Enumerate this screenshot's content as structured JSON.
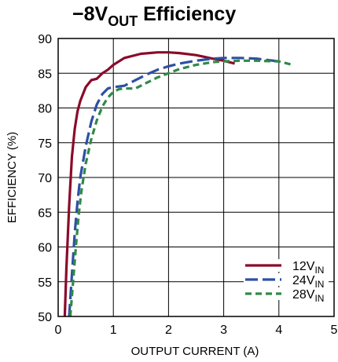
{
  "chart_data": {
    "type": "line",
    "title": {
      "pre": "−8V",
      "sub": "OUT",
      "post": " Efficiency"
    },
    "xlabel": "OUTPUT CURRENT (A)",
    "ylabel": "EFFICIENCY (%)",
    "xlim": [
      0,
      5
    ],
    "ylim": [
      50,
      90
    ],
    "xticks": [
      "0",
      "1",
      "2",
      "3",
      "4",
      "5"
    ],
    "yticks": [
      "50",
      "55",
      "60",
      "65",
      "70",
      "75",
      "80",
      "85",
      "90"
    ],
    "grid": true,
    "legend_position": "bottom-right",
    "series": [
      {
        "name": "12V",
        "name_sub": "IN",
        "color": "#8b0a2a",
        "dash": "solid",
        "x": [
          0.12,
          0.15,
          0.2,
          0.25,
          0.3,
          0.35,
          0.4,
          0.5,
          0.6,
          0.7,
          0.8,
          0.9,
          1.0,
          1.2,
          1.5,
          1.8,
          2.0,
          2.2,
          2.5,
          2.8,
          3.0,
          3.2
        ],
        "y": [
          50,
          57,
          66,
          73,
          77,
          79.5,
          81,
          83,
          84,
          84.2,
          85,
          85.5,
          86.2,
          87.2,
          87.8,
          88,
          88,
          87.9,
          87.6,
          87.1,
          86.8,
          86.4
        ]
      },
      {
        "name": "24V",
        "name_sub": "IN",
        "color": "#2e4fa3",
        "dash": "long",
        "x": [
          0.2,
          0.25,
          0.3,
          0.35,
          0.4,
          0.5,
          0.6,
          0.7,
          0.8,
          0.9,
          1.0,
          1.1,
          1.2,
          1.4,
          1.6,
          1.8,
          2.0,
          2.2,
          2.5,
          2.8,
          3.0,
          3.3,
          3.6,
          4.0
        ],
        "y": [
          50,
          56,
          62,
          66.5,
          70,
          74.5,
          78,
          80.5,
          82,
          82.8,
          83,
          83.1,
          83.2,
          84,
          84.8,
          85.5,
          86,
          86.4,
          86.8,
          87.1,
          87.2,
          87.2,
          87.1,
          86.7
        ]
      },
      {
        "name": "28V",
        "name_sub": "IN",
        "color": "#2f8a47",
        "dash": "short",
        "x": [
          0.22,
          0.27,
          0.32,
          0.37,
          0.42,
          0.5,
          0.6,
          0.7,
          0.8,
          0.9,
          1.0,
          1.1,
          1.2,
          1.4,
          1.6,
          1.8,
          2.0,
          2.2,
          2.5,
          2.8,
          3.0,
          3.3,
          3.6,
          4.0,
          4.25
        ],
        "y": [
          50,
          55,
          60,
          64.5,
          68,
          72,
          75.5,
          78.2,
          80.2,
          81.5,
          82.3,
          82.7,
          82.8,
          82.8,
          83.6,
          84.4,
          85,
          85.6,
          86.2,
          86.6,
          86.7,
          86.8,
          86.8,
          86.7,
          86.2
        ]
      }
    ]
  }
}
